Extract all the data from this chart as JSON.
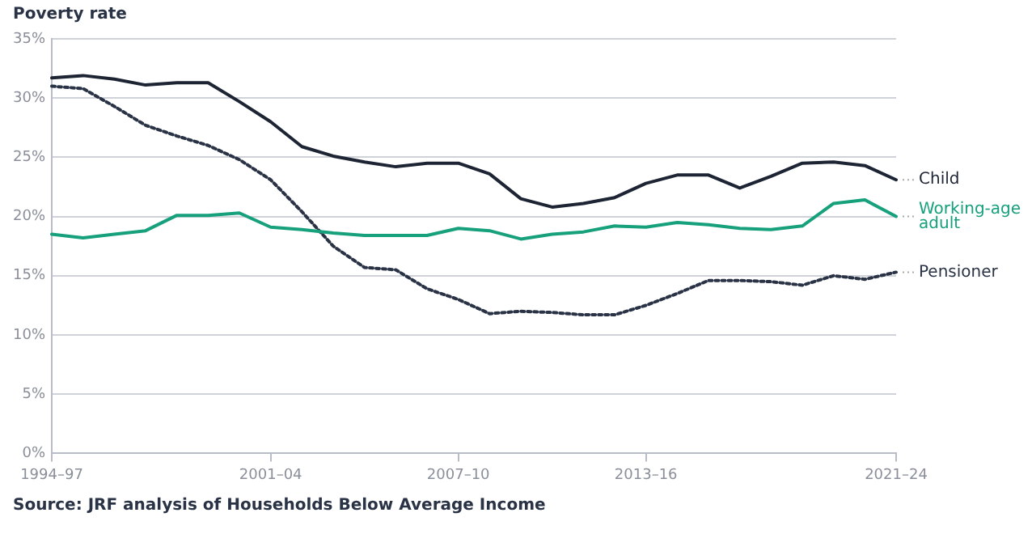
{
  "chart_data": {
    "type": "line",
    "ylabel": "Poverty rate",
    "categories": [
      "1994–97",
      null,
      null,
      null,
      null,
      null,
      null,
      "2001–04",
      null,
      null,
      null,
      null,
      null,
      "2007–10",
      null,
      null,
      null,
      null,
      null,
      "2013–16",
      null,
      null,
      null,
      null,
      null,
      null,
      null,
      "2021–24"
    ],
    "series": [
      {
        "name": "Child",
        "color": "#1d2433",
        "line_style": "solid",
        "values": [
          31.7,
          31.9,
          31.6,
          31.1,
          31.3,
          31.3,
          29.7,
          28.0,
          25.9,
          25.1,
          24.6,
          24.2,
          24.5,
          24.5,
          23.6,
          21.5,
          20.8,
          21.1,
          21.6,
          22.8,
          23.5,
          23.5,
          22.4,
          23.4,
          24.5,
          24.6,
          24.3,
          23.1
        ]
      },
      {
        "name": "Working-age adult",
        "color": "#16a07c",
        "line_style": "solid",
        "values": [
          18.5,
          18.2,
          18.5,
          18.8,
          20.1,
          20.1,
          20.3,
          19.1,
          18.9,
          18.6,
          18.4,
          18.4,
          18.4,
          19.0,
          18.8,
          18.1,
          18.5,
          18.7,
          19.2,
          19.1,
          19.5,
          19.3,
          19.0,
          18.9,
          19.2,
          21.1,
          21.4,
          20.0
        ]
      },
      {
        "name": "Pensioner",
        "color": "#2a3345",
        "line_style": "dotted",
        "values": [
          31.0,
          30.8,
          29.3,
          27.7,
          26.8,
          26.0,
          24.8,
          23.1,
          20.4,
          17.5,
          15.7,
          15.5,
          13.9,
          13.0,
          11.8,
          12.0,
          11.9,
          11.7,
          11.7,
          12.5,
          13.5,
          14.6,
          14.6,
          14.5,
          14.2,
          15.0,
          14.7,
          15.3
        ]
      }
    ],
    "ylim": [
      0,
      35
    ],
    "yticks": [
      {
        "value": 0,
        "label": "0%"
      },
      {
        "value": 5,
        "label": "5%"
      },
      {
        "value": 10,
        "label": "10%"
      },
      {
        "value": 15,
        "label": "15%"
      },
      {
        "value": 20,
        "label": "20%"
      },
      {
        "value": 25,
        "label": "25%"
      },
      {
        "value": 30,
        "label": "30%"
      },
      {
        "value": 35,
        "label": "35%"
      }
    ],
    "grid": "y",
    "legend": false,
    "marker": "none",
    "annotations": [
      "Source: JRF analysis of Households Below Average Income"
    ]
  }
}
